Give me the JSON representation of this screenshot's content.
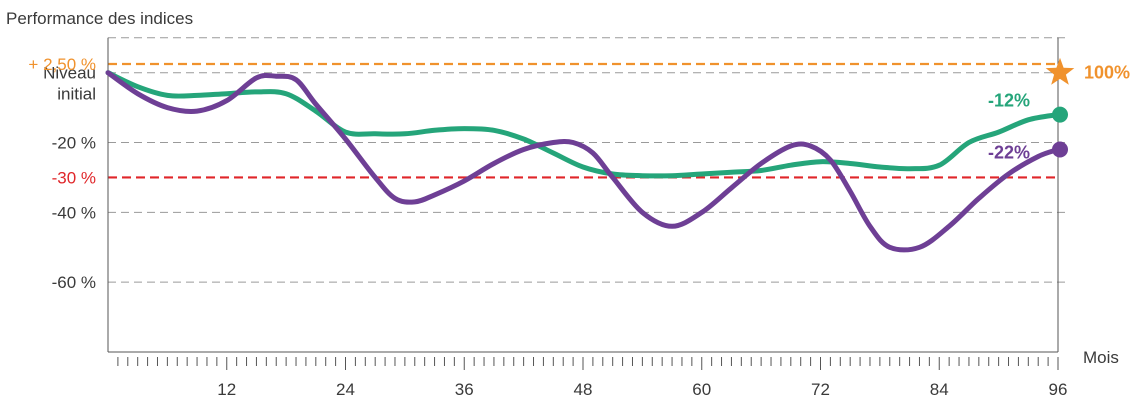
{
  "chart_data": {
    "type": "line",
    "title": "Performance des indices",
    "xlabel": "Mois",
    "ylabel": "",
    "xlim": [
      0,
      96
    ],
    "ylim": [
      -80,
      10
    ],
    "x_ticks": [
      12,
      24,
      36,
      48,
      60,
      72,
      84,
      96
    ],
    "grid": true,
    "y_gridlines": [
      10,
      0,
      -20,
      -40,
      -60
    ],
    "y_tick_labels": [
      {
        "value": 0,
        "label": "Niveau initial"
      },
      {
        "value": -20,
        "label": "-20 %"
      },
      {
        "value": -40,
        "label": "-40 %"
      },
      {
        "value": -60,
        "label": "-60 %"
      }
    ],
    "thresholds": [
      {
        "value": 2.5,
        "label": "+ 2,50 %",
        "color": "#f0922d"
      },
      {
        "value": -30,
        "label": "-30 %",
        "color": "#e0262a"
      }
    ],
    "series": [
      {
        "color": "#25a57a",
        "end_label": "-12%",
        "x": [
          0,
          3,
          6,
          9,
          12,
          15,
          18,
          21,
          24,
          27,
          30,
          33,
          36,
          39,
          42,
          45,
          48,
          51,
          54,
          57,
          60,
          63,
          66,
          69,
          72,
          75,
          78,
          81,
          84,
          87,
          90,
          93,
          96
        ],
        "values": [
          0,
          -4,
          -6.5,
          -6.5,
          -6,
          -5.5,
          -6,
          -11,
          -17,
          -17.5,
          -17.5,
          -16.5,
          -16,
          -16.5,
          -19,
          -23,
          -27,
          -29,
          -29.5,
          -29.5,
          -29,
          -28.5,
          -28,
          -26.5,
          -25.5,
          -26,
          -27,
          -27.5,
          -26.5,
          -20,
          -17,
          -13.5,
          -12
        ]
      },
      {
        "color": "#6e3f95",
        "end_label": "-22%",
        "x": [
          0,
          3,
          6,
          9,
          12,
          15,
          17,
          19,
          21,
          24,
          27,
          29,
          31,
          33,
          36,
          39,
          42,
          45,
          47,
          49,
          51,
          54,
          57,
          60,
          63,
          66,
          69,
          71,
          73,
          75,
          77,
          79,
          82,
          85,
          88,
          91,
          94,
          96
        ],
        "values": [
          0,
          -6,
          -10,
          -11,
          -8,
          -1.5,
          -1,
          -2,
          -9,
          -19,
          -30,
          -36,
          -37,
          -35,
          -31,
          -26,
          -22,
          -20,
          -20,
          -23,
          -30,
          -40,
          -44,
          -40,
          -33,
          -26,
          -21,
          -21,
          -25,
          -34,
          -44,
          -50,
          -50,
          -44,
          -36,
          -29,
          -24,
          -22
        ]
      }
    ],
    "annotations": [
      {
        "text": "100%",
        "color": "#f0922d",
        "marker": "star-icon",
        "x": 96,
        "y": 0
      }
    ]
  }
}
